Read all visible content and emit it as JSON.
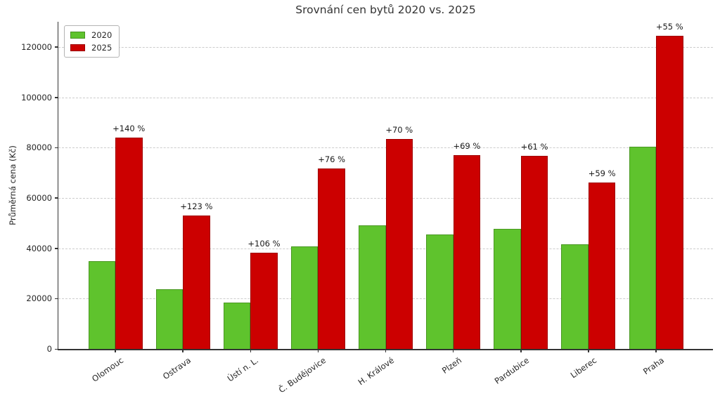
{
  "title": "Srovnání cen bytů 2020 vs. 2025",
  "chart_data": {
    "type": "bar",
    "categories": [
      "Olomouc",
      "Ostrava",
      "Ústí n. L.",
      "Č. Budějovice",
      "H. Králové",
      "Plzeň",
      "Pardubice",
      "Liberec",
      "Praha"
    ],
    "series": [
      {
        "name": "2020",
        "color": "#5fc32d",
        "values": [
          35000,
          23800,
          18500,
          40800,
          49000,
          45600,
          47700,
          41500,
          80300
        ]
      },
      {
        "name": "2025",
        "color": "#cc0000",
        "values": [
          84000,
          53100,
          38100,
          71800,
          83300,
          77000,
          76800,
          66000,
          124500
        ]
      }
    ],
    "annotations": [
      "+140 %",
      "+123 %",
      "+106 %",
      "+76 %",
      "+70 %",
      "+69 %",
      "+61 %",
      "+59 %",
      "+55 %"
    ],
    "title": "Srovnání cen bytů 2020 vs. 2025",
    "xlabel": "",
    "ylabel": "Průměrná cena (Kč)",
    "ylim": [
      0,
      130000
    ],
    "yticks": [
      0,
      20000,
      40000,
      60000,
      80000,
      100000,
      120000
    ],
    "grid": "horizontal-dashed",
    "legend_position": "upper-left",
    "colors": {
      "series_2020": "#5fc32d",
      "series_2025": "#cc0000",
      "grid": "#cccccc",
      "axis": "#333333",
      "text": "#262626"
    }
  }
}
